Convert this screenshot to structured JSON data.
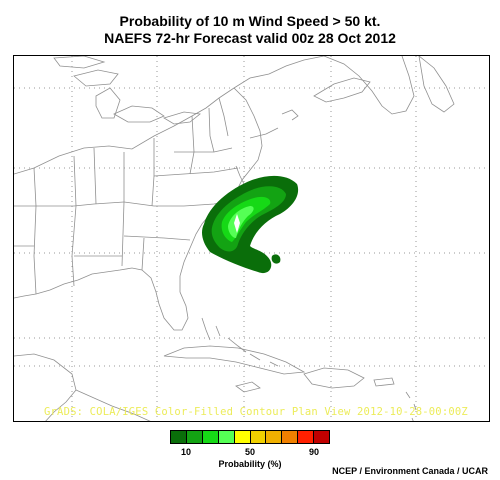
{
  "title_line1": "Probability of 10 m Wind Speed > 50 kt.",
  "title_line2": "NAEFS 72-hr Forecast valid 00z 28 Oct 2012",
  "watermark": "GrADS: COLA/IGES   Color-Filled Contour Plan View 2012-10-28-00:00Z",
  "colorbar": {
    "colors": [
      "#0a6e0a",
      "#13a313",
      "#16d916",
      "#55ff55",
      "#ffff00",
      "#f0d000",
      "#f0b000",
      "#f08000",
      "#ff2000",
      "#c00000"
    ],
    "tick_labels": [
      {
        "label": "10",
        "position": 0
      },
      {
        "label": "50",
        "position": 0.5
      },
      {
        "label": "90",
        "position": 1.0
      }
    ],
    "label": "Probability (%)"
  },
  "credit": "NCEP / Environment Canada / UCAR"
}
